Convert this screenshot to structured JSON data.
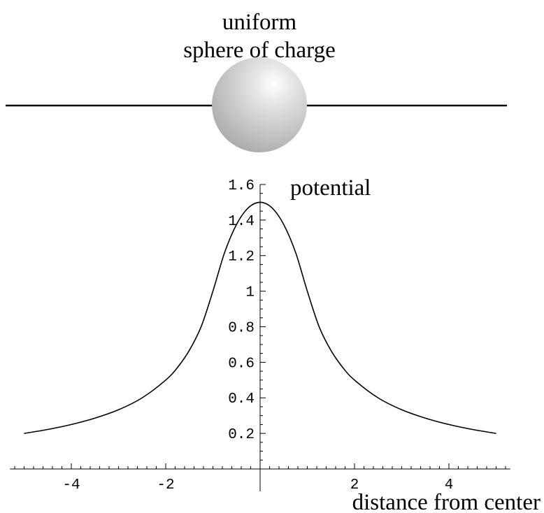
{
  "sphere": {
    "label_line1": "uniform",
    "label_line2": "sphere of charge",
    "fill_light": "#ffffff",
    "fill_dark": "#a8a8a8"
  },
  "chart_data": {
    "type": "line",
    "title": "",
    "xlabel": "distance from center",
    "ylabel": "",
    "xlim": [
      -5.3,
      5.3
    ],
    "ylim": [
      0,
      1.6
    ],
    "grid": false,
    "x_ticks": [
      -4,
      -2,
      2,
      4
    ],
    "x_tick_labels": [
      "-4",
      "-2",
      "2",
      "4"
    ],
    "y_ticks": [
      0.2,
      0.4,
      0.6,
      0.8,
      1.0,
      1.2,
      1.4,
      1.6
    ],
    "y_tick_labels": [
      "0.2",
      "0.4",
      "0.6",
      "0.8",
      "1",
      "1.2",
      "1.4",
      "1.6"
    ],
    "series": [
      {
        "name": "potential",
        "x": [
          -5,
          -4.5,
          -4,
          -3.5,
          -3,
          -2.5,
          -2,
          -1.75,
          -1.5,
          -1.25,
          -1,
          -0.75,
          -0.5,
          -0.25,
          0,
          0.25,
          0.5,
          0.75,
          1,
          1.25,
          1.5,
          1.75,
          2,
          2.5,
          3,
          3.5,
          4,
          4.5,
          5
        ],
        "values": [
          0.2,
          0.222,
          0.25,
          0.286,
          0.333,
          0.4,
          0.5,
          0.571,
          0.667,
          0.8,
          1.0,
          1.219,
          1.375,
          1.469,
          1.5,
          1.469,
          1.375,
          1.219,
          1.0,
          0.8,
          0.667,
          0.571,
          0.5,
          0.4,
          0.333,
          0.286,
          0.25,
          0.222,
          0.2
        ]
      }
    ]
  }
}
